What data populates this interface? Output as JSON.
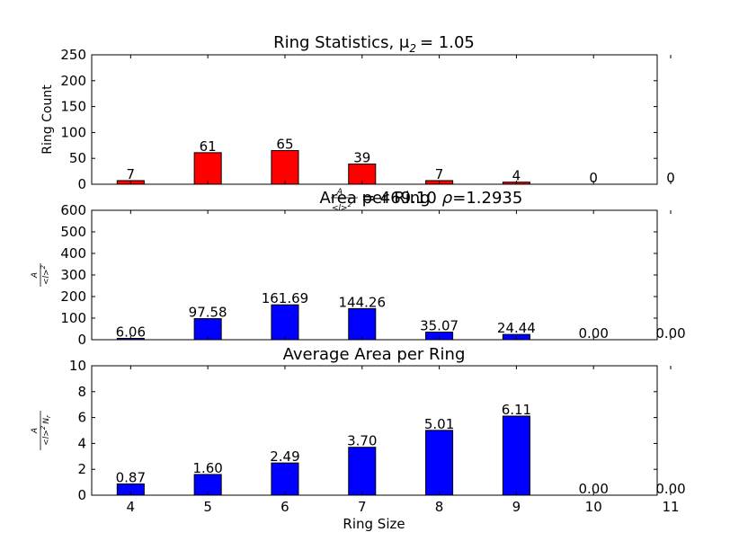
{
  "chart_data": [
    {
      "type": "bar",
      "title": "Ring Statistics, μ",
      "title_sub": "2",
      "title_value": "= 1.05",
      "xlabel": "",
      "ylabel": "Ring Count",
      "categories": [
        "4",
        "5",
        "6",
        "7",
        "8",
        "9",
        "10",
        "11"
      ],
      "values": [
        7,
        61,
        65,
        39,
        7,
        4,
        0,
        0
      ],
      "data_labels": [
        "7",
        "61",
        "65",
        "39",
        "7",
        "4",
        "0",
        "0"
      ],
      "ylim": [
        0,
        250
      ],
      "yticks": [
        "0",
        "50",
        "100",
        "150",
        "200",
        "250"
      ],
      "color": "#ff0000"
    },
    {
      "type": "bar",
      "title": "Area per Ring",
      "title_frac_num": "A",
      "title_frac_den": "<l>",
      "title_frac_den_sup": "2",
      "title_value": "= 469.10",
      "title_rho": "ρ",
      "title_rho_value": "=1.2935",
      "xlabel": "",
      "ylabel_num": "A",
      "ylabel_den": "<l>",
      "ylabel_den_sup": "2",
      "categories": [
        "4",
        "5",
        "6",
        "7",
        "8",
        "9",
        "10",
        "11"
      ],
      "values": [
        6.06,
        97.58,
        161.69,
        144.26,
        35.07,
        24.44,
        0.0,
        0.0
      ],
      "data_labels": [
        "6.06",
        "97.58",
        "161.69",
        "144.26",
        "35.07",
        "24.44",
        "0.00",
        "0.00"
      ],
      "ylim": [
        0,
        600
      ],
      "yticks": [
        "0",
        "100",
        "200",
        "300",
        "400",
        "500",
        "600"
      ],
      "color": "#0000ff"
    },
    {
      "type": "bar",
      "title": "Average Area per Ring",
      "xlabel": "Ring Size",
      "ylabel_num": "A",
      "ylabel_den": "<l>",
      "ylabel_den_sup": "2",
      "ylabel_den_tail": "N",
      "ylabel_den_tail_sub": "r",
      "categories": [
        "4",
        "5",
        "6",
        "7",
        "8",
        "9",
        "10",
        "11"
      ],
      "values": [
        0.87,
        1.6,
        2.49,
        3.7,
        5.01,
        6.11,
        0.0,
        0.0
      ],
      "data_labels": [
        "0.87",
        "1.60",
        "2.49",
        "3.70",
        "5.01",
        "6.11",
        "0.00",
        "0.00"
      ],
      "ylim": [
        0,
        10
      ],
      "yticks": [
        "0",
        "2",
        "4",
        "6",
        "8",
        "10"
      ],
      "xticks": [
        "4",
        "5",
        "6",
        "7",
        "8",
        "9",
        "10",
        "11"
      ],
      "color": "#0000ff"
    }
  ]
}
